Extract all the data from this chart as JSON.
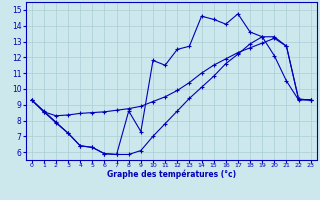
{
  "xlabel": "Graphe des températures (°c)",
  "bg_color": "#cce8ec",
  "grid_color": "#aacdd4",
  "line_color": "#0000bb",
  "xlim": [
    -0.5,
    23.5
  ],
  "ylim": [
    5.5,
    15.5
  ],
  "xticks": [
    0,
    1,
    2,
    3,
    4,
    5,
    6,
    7,
    8,
    9,
    10,
    11,
    12,
    13,
    14,
    15,
    16,
    17,
    18,
    19,
    20,
    21,
    22,
    23
  ],
  "yticks": [
    6,
    7,
    8,
    9,
    10,
    11,
    12,
    13,
    14,
    15
  ],
  "line1_x": [
    0,
    1,
    2,
    3,
    4,
    5,
    6,
    7,
    8,
    9,
    10,
    11,
    12,
    13,
    14,
    15,
    16,
    17,
    18,
    19,
    20,
    21,
    22,
    23
  ],
  "line1_y": [
    9.3,
    8.6,
    7.9,
    7.2,
    6.4,
    6.3,
    5.9,
    5.85,
    8.6,
    7.3,
    11.8,
    11.5,
    12.5,
    12.7,
    14.6,
    14.4,
    14.1,
    14.75,
    13.6,
    13.3,
    12.1,
    10.5,
    9.3,
    9.3
  ],
  "line2_x": [
    0,
    1,
    2,
    3,
    4,
    5,
    6,
    7,
    8,
    9,
    10,
    11,
    12,
    13,
    14,
    15,
    16,
    17,
    18,
    19,
    20,
    21,
    22,
    23
  ],
  "line2_y": [
    9.3,
    8.55,
    8.3,
    8.35,
    8.45,
    8.5,
    8.55,
    8.65,
    8.75,
    8.9,
    9.2,
    9.5,
    9.9,
    10.4,
    11.0,
    11.5,
    11.9,
    12.3,
    12.6,
    12.9,
    13.2,
    12.7,
    9.35,
    9.3
  ],
  "line3_x": [
    0,
    1,
    2,
    3,
    4,
    5,
    6,
    7,
    8,
    9,
    10,
    11,
    12,
    13,
    14,
    15,
    16,
    17,
    18,
    19,
    20,
    21,
    22,
    23
  ],
  "line3_y": [
    9.3,
    8.55,
    7.85,
    7.2,
    6.4,
    6.3,
    5.9,
    5.85,
    5.85,
    6.1,
    7.0,
    7.8,
    8.6,
    9.4,
    10.1,
    10.8,
    11.6,
    12.2,
    12.85,
    13.3,
    13.3,
    12.7,
    9.35,
    9.3
  ]
}
